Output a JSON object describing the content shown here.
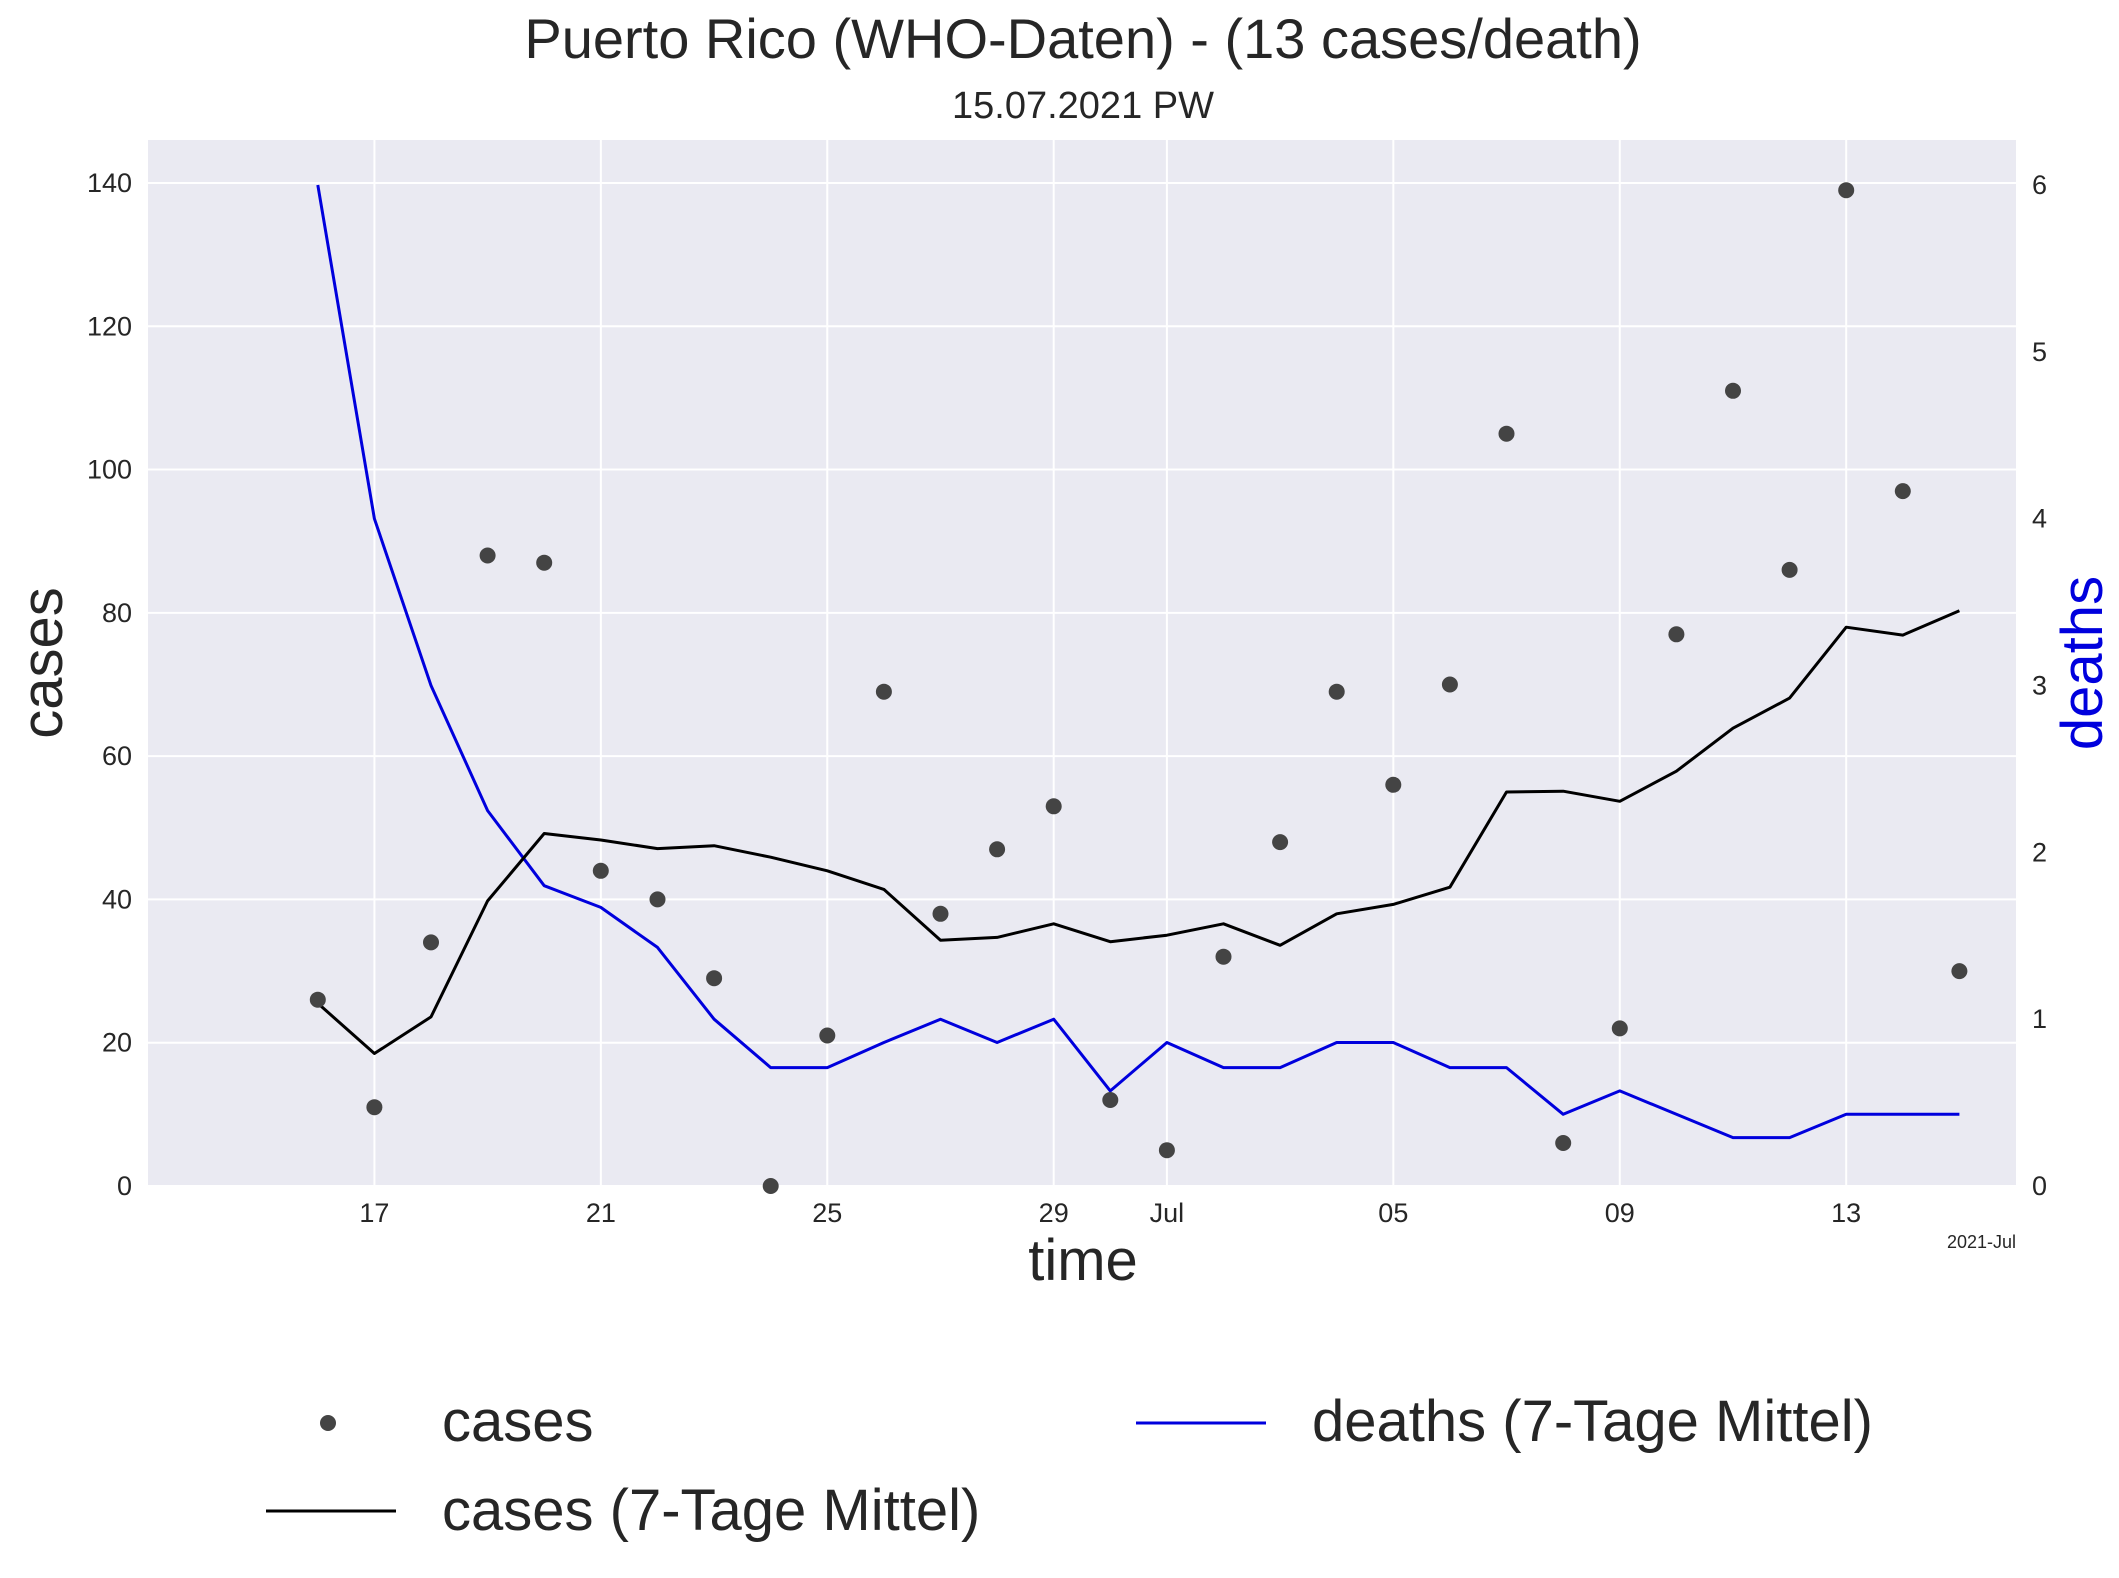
{
  "chart_data": {
    "type": "line",
    "title": "Puerto Rico (WHO-Daten) - (13 cases/death)",
    "subtitle": "15.07.2021 PW",
    "xlabel": "time",
    "ylabel": "cases",
    "y2label": "deaths",
    "date_axis_offset": "2021-Jul",
    "x_range": [
      "2021-06-13",
      "2021-07-16"
    ],
    "ylim": [
      0,
      146
    ],
    "y2lim": [
      0,
      6.27
    ],
    "grid": true,
    "legend_position": "bottom",
    "x_ticks": [
      {
        "date": "2021-06-17",
        "label": "17"
      },
      {
        "date": "2021-06-21",
        "label": "21"
      },
      {
        "date": "2021-06-25",
        "label": "25"
      },
      {
        "date": "2021-06-29",
        "label": "29"
      },
      {
        "date": "2021-07-01",
        "label": "Jul"
      },
      {
        "date": "2021-07-05",
        "label": "05"
      },
      {
        "date": "2021-07-09",
        "label": "09"
      },
      {
        "date": "2021-07-13",
        "label": "13"
      }
    ],
    "y_ticks": [
      0,
      20,
      40,
      60,
      80,
      100,
      120,
      140
    ],
    "y2_ticks": [
      0,
      1,
      2,
      3,
      4,
      5,
      6
    ],
    "dates": [
      "2021-06-16",
      "2021-06-17",
      "2021-06-18",
      "2021-06-19",
      "2021-06-20",
      "2021-06-21",
      "2021-06-22",
      "2021-06-23",
      "2021-06-24",
      "2021-06-25",
      "2021-06-26",
      "2021-06-27",
      "2021-06-28",
      "2021-06-29",
      "2021-06-30",
      "2021-07-01",
      "2021-07-02",
      "2021-07-03",
      "2021-07-04",
      "2021-07-05",
      "2021-07-06",
      "2021-07-07",
      "2021-07-08",
      "2021-07-09",
      "2021-07-10",
      "2021-07-11",
      "2021-07-12",
      "2021-07-13",
      "2021-07-14",
      "2021-07-15"
    ],
    "series": [
      {
        "name": "cases",
        "kind": "scatter",
        "axis": "left",
        "color": "#444444",
        "values": [
          26,
          11,
          34,
          88,
          87,
          44,
          40,
          29,
          0,
          21,
          69,
          38,
          47,
          53,
          12,
          5,
          32,
          48,
          69,
          56,
          70,
          105,
          6,
          22,
          77,
          111,
          86,
          139,
          97,
          30
        ]
      },
      {
        "name": "cases (7-Tage Mittel)",
        "kind": "line",
        "axis": "left",
        "color": "#000000",
        "values": [
          25.5,
          18.5,
          23.6,
          39.8,
          49.2,
          48.3,
          47.1,
          47.5,
          45.9,
          44.0,
          41.4,
          34.3,
          34.7,
          36.6,
          34.1,
          35.0,
          36.6,
          33.6,
          38.0,
          39.3,
          41.7,
          55.0,
          55.1,
          53.7,
          57.9,
          63.9,
          68.1,
          78.0,
          76.9,
          80.3
        ]
      },
      {
        "name": "deaths (7-Tage Mittel)",
        "kind": "line",
        "axis": "right",
        "color": "#0000dd",
        "values": [
          6.0,
          4.0,
          3.0,
          2.25,
          1.8,
          1.67,
          1.43,
          1.0,
          0.71,
          0.71,
          0.86,
          1.0,
          0.86,
          1.0,
          0.57,
          0.86,
          0.71,
          0.71,
          0.86,
          0.86,
          0.71,
          0.71,
          0.43,
          0.57,
          0.43,
          0.29,
          0.29,
          0.43,
          0.43,
          0.43
        ]
      }
    ]
  }
}
